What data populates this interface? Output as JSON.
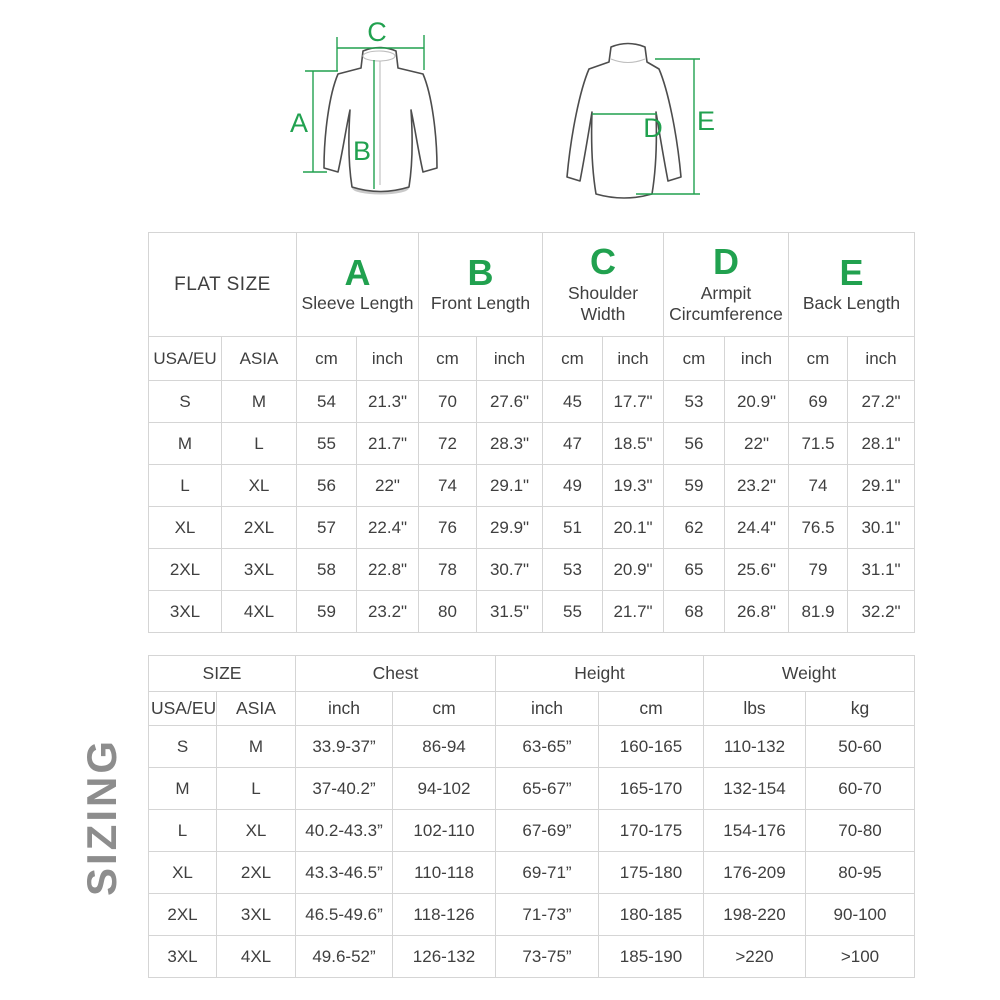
{
  "colors": {
    "accent_green": "#21a14f",
    "text": "#3f3f3f",
    "muted_gray": "#8d8d8d",
    "border": "#d5d5d5"
  },
  "side_label": "SIZING",
  "diagram": {
    "front": {
      "labels": {
        "a": "A",
        "b": "B",
        "c": "C"
      }
    },
    "back": {
      "labels": {
        "d": "D",
        "e": "E"
      }
    }
  },
  "flat_size_table": {
    "title": "FLAT SIZE",
    "measures": [
      {
        "letter": "A",
        "name": "Sleeve Length"
      },
      {
        "letter": "B",
        "name": "Front Length"
      },
      {
        "letter": "C",
        "name": "Shoulder Width"
      },
      {
        "letter": "D",
        "name": "Armpit Circumference"
      },
      {
        "letter": "E",
        "name": "Back Length"
      }
    ],
    "size_headers": [
      "USA/EU",
      "ASIA"
    ],
    "unit_headers": [
      "cm",
      "inch"
    ],
    "rows": [
      [
        "S",
        "M",
        "54",
        "21.3\"",
        "70",
        "27.6\"",
        "45",
        "17.7\"",
        "53",
        "20.9\"",
        "69",
        "27.2\""
      ],
      [
        "M",
        "L",
        "55",
        "21.7\"",
        "72",
        "28.3\"",
        "47",
        "18.5\"",
        "56",
        "22\"",
        "71.5",
        "28.1\""
      ],
      [
        "L",
        "XL",
        "56",
        "22\"",
        "74",
        "29.1\"",
        "49",
        "19.3\"",
        "59",
        "23.2\"",
        "74",
        "29.1\""
      ],
      [
        "XL",
        "2XL",
        "57",
        "22.4\"",
        "76",
        "29.9\"",
        "51",
        "20.1\"",
        "62",
        "24.4\"",
        "76.5",
        "30.1\""
      ],
      [
        "2XL",
        "3XL",
        "58",
        "22.8\"",
        "78",
        "30.7\"",
        "53",
        "20.9\"",
        "65",
        "25.6\"",
        "79",
        "31.1\""
      ],
      [
        "3XL",
        "4XL",
        "59",
        "23.2\"",
        "80",
        "31.5\"",
        "55",
        "21.7\"",
        "68",
        "26.8\"",
        "81.9",
        "32.2\""
      ]
    ]
  },
  "body_size_table": {
    "title": "SIZE",
    "size_headers": [
      "USA/EU",
      "ASIA"
    ],
    "groups": [
      {
        "name": "Chest",
        "units": [
          "inch",
          "cm"
        ]
      },
      {
        "name": "Height",
        "units": [
          "inch",
          "cm"
        ]
      },
      {
        "name": "Weight",
        "units": [
          "lbs",
          "kg"
        ]
      }
    ],
    "rows": [
      [
        "S",
        "M",
        "33.9-37”",
        "86-94",
        "63-65”",
        "160-165",
        "110-132",
        "50-60"
      ],
      [
        "M",
        "L",
        "37-40.2”",
        "94-102",
        "65-67”",
        "165-170",
        "132-154",
        "60-70"
      ],
      [
        "L",
        "XL",
        "40.2-43.3”",
        "102-110",
        "67-69”",
        "170-175",
        "154-176",
        "70-80"
      ],
      [
        "XL",
        "2XL",
        "43.3-46.5”",
        "110-118",
        "69-71”",
        "175-180",
        "176-209",
        "80-95"
      ],
      [
        "2XL",
        "3XL",
        "46.5-49.6”",
        "118-126",
        "71-73”",
        "180-185",
        "198-220",
        "90-100"
      ],
      [
        "3XL",
        "4XL",
        "49.6-52”",
        "126-132",
        "73-75”",
        "185-190",
        ">220",
        ">100"
      ]
    ]
  }
}
